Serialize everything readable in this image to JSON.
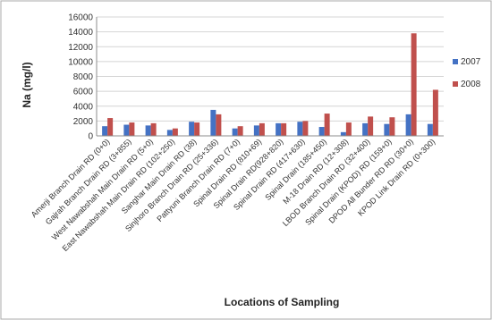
{
  "chart_data": {
    "type": "bar",
    "title": "",
    "xlabel": "Locations of Sampling",
    "ylabel": "Na (mg/l)",
    "ylim": [
      0,
      16000
    ],
    "yticks": [
      "0",
      "2000",
      "4000",
      "6000",
      "8000",
      "10000",
      "12000",
      "14000",
      "16000"
    ],
    "grid": true,
    "legend": "right",
    "categories": [
      "Amerji Branch Drain RD (0+0)",
      "Gajrah Branch Drain RD (3+855)",
      "West Nawabshah Main Drain RD (5+0)",
      "East Nawabshah Main Drain RD (102+250)",
      "Sanghar Main Drain RD (38)",
      "Sinjhoro Branch Drain RD (25+336)",
      "Pattyuni Branch Drain RD (7+0)",
      "Spinal Drain RD (810+69)",
      "Spinal Drain RD(928+820)",
      "Spinal Drain RD (417+630)",
      "Spinal Drain (185+450)",
      "M-18 Drain RD (12+308)",
      "LBOD Branch Drain RD (32+400)",
      "Spinal Drain (KPOD) RD (159+0)",
      "DPOD All Bunder RD RD (30+0)",
      "KPOD Link Drain RD (0+300)"
    ],
    "series": [
      {
        "name": "2007",
        "color": "#4472c4",
        "values": [
          1300,
          1500,
          1400,
          800,
          1900,
          3500,
          1000,
          1400,
          1700,
          1900,
          1200,
          500,
          1700,
          1600,
          2900,
          1600
        ]
      },
      {
        "name": "2008",
        "color": "#c0504d",
        "values": [
          2400,
          1800,
          1700,
          1000,
          1800,
          2900,
          1300,
          1700,
          1700,
          2000,
          3000,
          1800,
          2600,
          2500,
          13800,
          6200
        ]
      }
    ]
  }
}
